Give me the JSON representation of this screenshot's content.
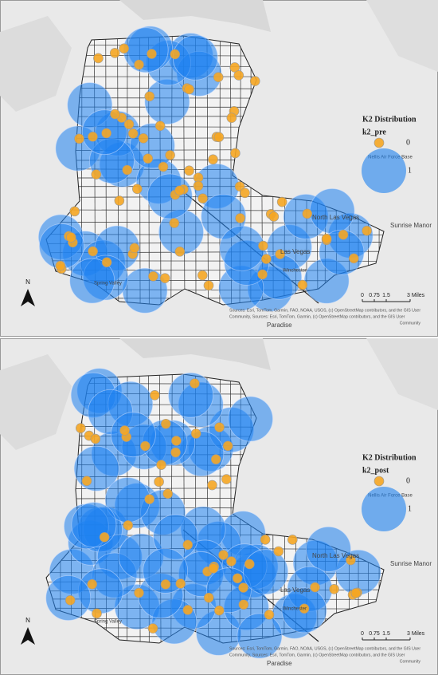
{
  "panels": [
    {
      "legend": {
        "title": "K2 Distribution",
        "field": "k2_pre",
        "labels": [
          "0",
          "1"
        ]
      },
      "places": [
        "Nellis Air Force Base",
        "North Las Vegas",
        "Sunrise Manor",
        "Las Vegas",
        "Paradise",
        "Winchester",
        "Spring Valley"
      ],
      "north": "N",
      "scale": [
        "0",
        "0.75",
        "1.5",
        "3 Miles"
      ],
      "attribution": [
        "Sources: Esri, TomTom, Garmin, FAO, NOAA, USGS, (c) OpenStreetMap contributors, and the GIS User",
        "Community, Sources: Esri, TomTom, Garmin, (c) OpenStreetMap contributors, and the GIS User",
        "Community"
      ]
    },
    {
      "legend": {
        "title": "K2 Distribution",
        "field": "k2_post",
        "labels": [
          "0",
          "1"
        ]
      },
      "places": [
        "Nellis Air Force Base",
        "North Las Vegas",
        "Sunrise Manor",
        "Las Vegas",
        "Paradise",
        "Winchester",
        "Spring Valley"
      ],
      "north": "N",
      "scale": [
        "0",
        "0.75",
        "1.5",
        "3 Miles"
      ],
      "attribution": [
        "Sources: Esri, TomTom, Garmin, FAO, NOAA, USGS, (c) OpenStreetMap contributors, and the GIS User",
        "Community, Sources: Esri, TomTom, Garmin, (c) OpenStreetMap contributors, and the GIS User",
        "Community"
      ]
    }
  ]
}
